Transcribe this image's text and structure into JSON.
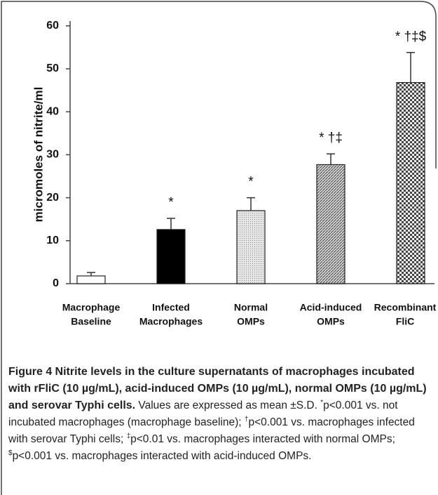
{
  "chart_data": {
    "type": "bar",
    "ylabel": "micromoles of nitrite/ml",
    "categories": [
      [
        "Macrophage",
        "Baseline"
      ],
      [
        "Infected",
        "Macrophages"
      ],
      [
        "Normal",
        "OMPs"
      ],
      [
        "Acid-induced",
        "OMPs"
      ],
      [
        "Recombinant",
        "FliC"
      ]
    ],
    "values": [
      1.8,
      12.6,
      17.0,
      27.7,
      46.8
    ],
    "errors": [
      0.8,
      2.6,
      3.0,
      2.5,
      7.0
    ],
    "annotations": [
      null,
      "*",
      "*",
      "* †‡",
      "* †‡$"
    ],
    "colors": [
      "#ffffff",
      "#000000",
      "#d4d4d4",
      "#9a9a9a",
      "#555555"
    ],
    "patterns": [
      "none",
      "none",
      "dots",
      "diagonal",
      "checker"
    ],
    "ylim": [
      0,
      60
    ],
    "yticks": [
      0,
      10,
      20,
      30,
      40,
      50,
      60
    ],
    "grid": false
  },
  "caption": {
    "label": "Figure 4",
    "title": "Nitrite levels in the culture supernatants of macrophages incubated with rFliC (10 µg/mL), acid-induced OMPs (10 µg/mL), normal OMPs (10 µg/mL) and serovar Typhi cells.",
    "body": [
      {
        "text": "Values are expressed as mean ±S.D. "
      },
      {
        "sup": "*"
      },
      {
        "text": "p<0.001 vs. not incubated macrophages (macrophage baseline); "
      },
      {
        "sup": "†"
      },
      {
        "text": "p<0.001 vs. macrophages infected with serovar Typhi cells; "
      },
      {
        "sup": "‡"
      },
      {
        "text": "p<0.01 vs. macrophages interacted with normal OMPs; "
      },
      {
        "sup": "$"
      },
      {
        "text": "p<0.001 vs. macrophages interacted with acid-induced OMPs."
      }
    ]
  }
}
